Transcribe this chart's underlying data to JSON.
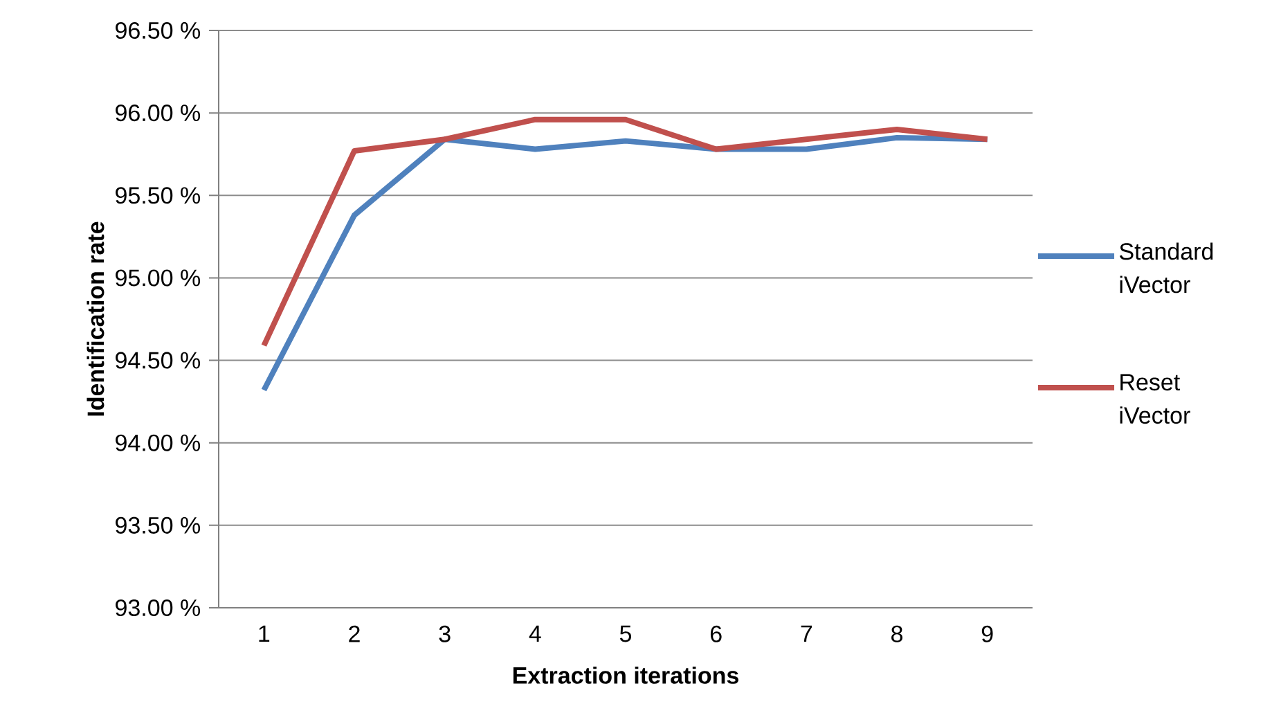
{
  "chart_data": {
    "type": "line",
    "xlabel": "Extraction iterations",
    "ylabel": "Identification rate",
    "categories": [
      "1",
      "2",
      "3",
      "4",
      "5",
      "6",
      "7",
      "8",
      "9"
    ],
    "series": [
      {
        "name": "Standard iVector",
        "color": "#4f81bd",
        "values": [
          94.32,
          95.38,
          95.84,
          95.78,
          95.83,
          95.78,
          95.78,
          95.85,
          95.84
        ]
      },
      {
        "name": "Reset iVector",
        "color": "#c0504d",
        "values": [
          94.59,
          95.77,
          95.84,
          95.96,
          95.96,
          95.78,
          95.84,
          95.9,
          95.84
        ]
      }
    ],
    "ylim": [
      93,
      96.5
    ],
    "yticks": [
      {
        "value": 93,
        "label": "93.00 %"
      },
      {
        "value": 93.5,
        "label": "93.50 %"
      },
      {
        "value": 94,
        "label": "94.00 %"
      },
      {
        "value": 94.5,
        "label": "94.50 %"
      },
      {
        "value": 95,
        "label": "95.00 %"
      },
      {
        "value": 95.5,
        "label": "95.50 %"
      },
      {
        "value": 96,
        "label": "96.00 %"
      },
      {
        "value": 96.5,
        "label": "96.50 %"
      }
    ],
    "grid": "y",
    "legend": "right",
    "marker": "none",
    "line_style": "solid"
  }
}
